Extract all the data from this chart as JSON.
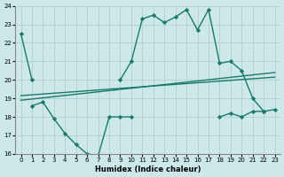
{
  "xlabel": "Humidex (Indice chaleur)",
  "x_values": [
    0,
    1,
    2,
    3,
    4,
    5,
    6,
    7,
    8,
    9,
    10,
    11,
    12,
    13,
    14,
    15,
    16,
    17,
    18,
    19,
    20,
    21,
    22,
    23
  ],
  "line1_y": [
    22.5,
    20.0,
    null,
    null,
    null,
    null,
    null,
    null,
    null,
    20.0,
    21.0,
    23.3,
    23.5,
    23.1,
    23.4,
    23.8,
    22.7,
    23.8,
    20.9,
    21.0,
    20.5,
    19.0,
    18.3,
    18.4
  ],
  "line2_y": [
    null,
    18.6,
    18.8,
    17.9,
    17.1,
    16.5,
    16.0,
    15.9,
    18.0,
    18.0,
    18.0,
    null,
    null,
    null,
    null,
    null,
    null,
    null,
    18.0,
    18.2,
    18.0,
    18.3,
    18.3,
    null
  ],
  "trend1_x": [
    0,
    23
  ],
  "trend1_y": [
    18.9,
    20.4
  ],
  "trend2_x": [
    0,
    23
  ],
  "trend2_y": [
    19.15,
    20.15
  ],
  "bg_color": "#cce8e8",
  "grid_color": "#aacccc",
  "line_color": "#1a7a6a",
  "ylim": [
    16,
    24
  ],
  "yticks": [
    16,
    17,
    18,
    19,
    20,
    21,
    22,
    23,
    24
  ],
  "xticks": [
    0,
    1,
    2,
    3,
    4,
    5,
    6,
    7,
    8,
    9,
    10,
    11,
    12,
    13,
    14,
    15,
    16,
    17,
    18,
    19,
    20,
    21,
    22,
    23
  ]
}
